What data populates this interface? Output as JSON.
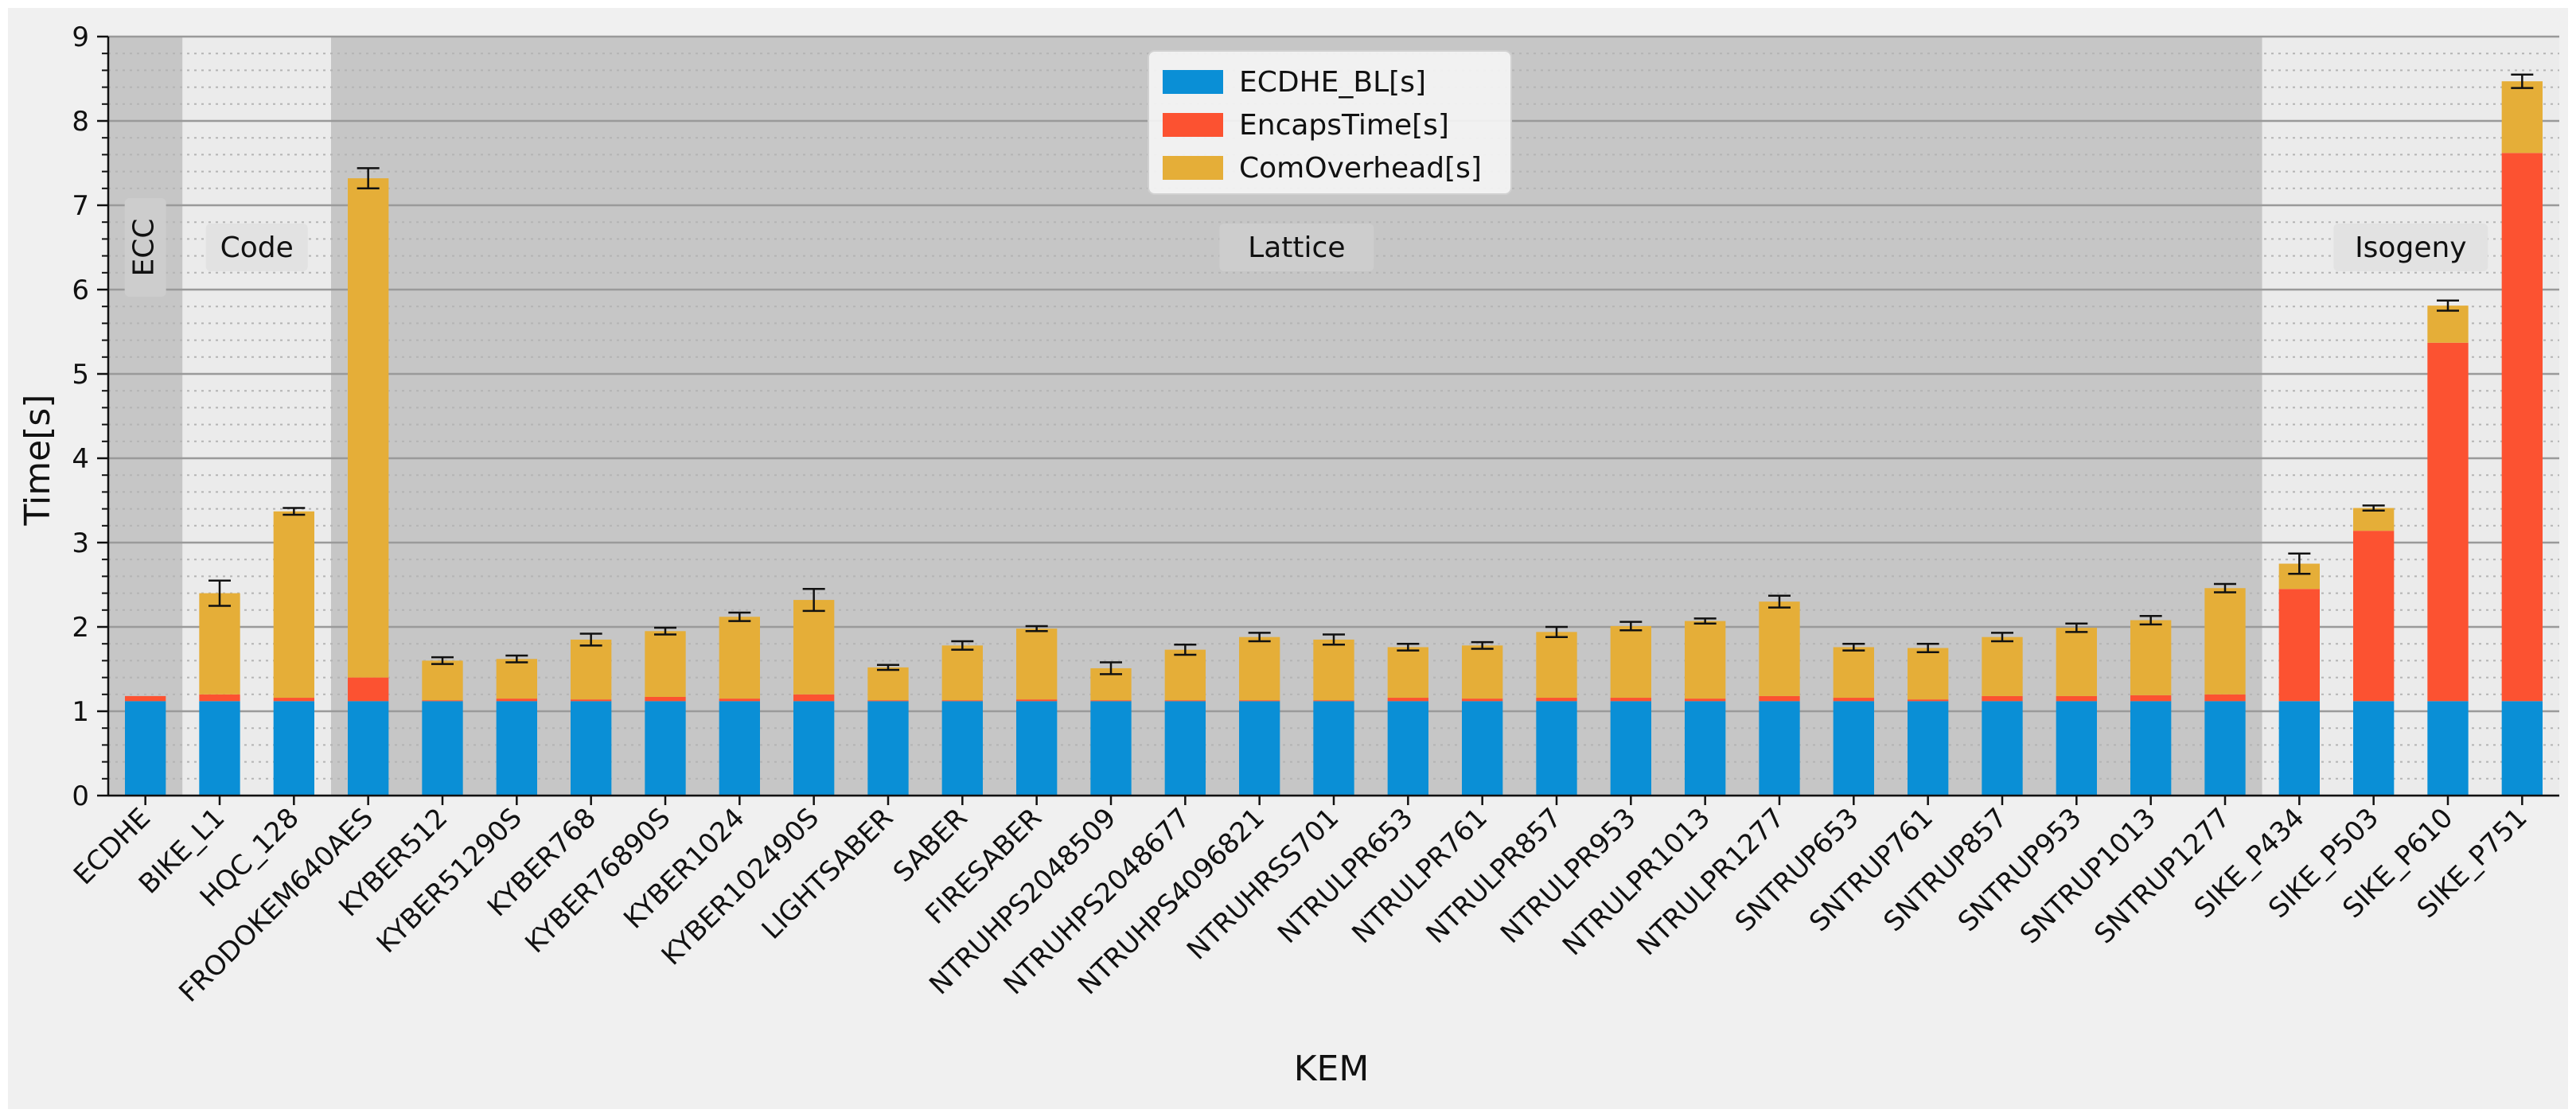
{
  "chart_data": {
    "type": "bar",
    "stacked": true,
    "title": "",
    "xlabel": "KEM",
    "ylabel": "Time[s]",
    "ylim": [
      0,
      9
    ],
    "yticks": [
      0,
      1,
      2,
      3,
      4,
      5,
      6,
      7,
      8,
      9
    ],
    "grid": "major and minor horizontal, dotted minor",
    "legend_position": "top-center",
    "categories": [
      "ECDHE",
      "BIKE_L1",
      "HQC_128",
      "FRODOKEM640AES",
      "KYBER512",
      "KYBER51290S",
      "KYBER768",
      "KYBER76890S",
      "KYBER1024",
      "KYBER102490S",
      "LIGHTSABER",
      "SABER",
      "FIRESABER",
      "NTRUHPS2048509",
      "NTRUHPS2048677",
      "NTRUHPS4096821",
      "NTRUHRSS701",
      "NTRULPR653",
      "NTRULPR761",
      "NTRULPR857",
      "NTRULPR953",
      "NTRULPR1013",
      "NTRULPR1277",
      "SNTRUP653",
      "SNTRUP761",
      "SNTRUP857",
      "SNTRUP953",
      "SNTRUP1013",
      "SNTRUP1277",
      "SIKE_P434",
      "SIKE_P503",
      "SIKE_P610",
      "SIKE_P751"
    ],
    "series": [
      {
        "name": "ECDHE_BL[s]",
        "color": "#0a8fd6",
        "values": [
          1.12,
          1.12,
          1.12,
          1.12,
          1.12,
          1.12,
          1.12,
          1.12,
          1.12,
          1.12,
          1.12,
          1.12,
          1.12,
          1.12,
          1.12,
          1.12,
          1.12,
          1.12,
          1.12,
          1.12,
          1.12,
          1.12,
          1.12,
          1.12,
          1.12,
          1.12,
          1.12,
          1.12,
          1.12,
          1.12,
          1.12,
          1.12,
          1.12
        ]
      },
      {
        "name": "EncapsTime[s]",
        "color": "#fc5231",
        "values": [
          0.06,
          0.08,
          0.04,
          0.28,
          0.01,
          0.03,
          0.02,
          0.05,
          0.03,
          0.08,
          0.01,
          0.01,
          0.02,
          0.01,
          0.01,
          0.01,
          0.01,
          0.04,
          0.03,
          0.04,
          0.04,
          0.03,
          0.06,
          0.04,
          0.02,
          0.06,
          0.06,
          0.07,
          0.08,
          1.33,
          2.02,
          4.25,
          6.5
        ]
      },
      {
        "name": "ComOverhead[s]",
        "color": "#e5ae38",
        "values": [
          0.0,
          1.2,
          2.21,
          5.92,
          0.47,
          0.47,
          0.71,
          0.78,
          0.97,
          1.12,
          0.39,
          0.65,
          0.84,
          0.38,
          0.6,
          0.75,
          0.72,
          0.6,
          0.63,
          0.78,
          0.85,
          0.92,
          1.12,
          0.6,
          0.61,
          0.7,
          0.81,
          0.89,
          1.26,
          0.3,
          0.27,
          0.44,
          0.85
        ]
      }
    ],
    "error_bars_total": [
      0.0,
      0.15,
      0.04,
      0.12,
      0.04,
      0.04,
      0.07,
      0.04,
      0.05,
      0.13,
      0.03,
      0.05,
      0.03,
      0.07,
      0.06,
      0.05,
      0.06,
      0.04,
      0.04,
      0.06,
      0.05,
      0.03,
      0.07,
      0.04,
      0.05,
      0.05,
      0.05,
      0.05,
      0.05,
      0.12,
      0.03,
      0.06,
      0.08
    ],
    "regions": [
      {
        "label": "ECC",
        "start": 0,
        "end": 0,
        "shade": "dark",
        "vertical": true
      },
      {
        "label": "Code",
        "start": 1,
        "end": 2,
        "shade": "light",
        "vertical": false
      },
      {
        "label": "Lattice",
        "start": 3,
        "end": 28,
        "shade": "dark",
        "vertical": false
      },
      {
        "label": "Isogeny",
        "start": 29,
        "end": 32,
        "shade": "light",
        "vertical": false
      }
    ]
  }
}
